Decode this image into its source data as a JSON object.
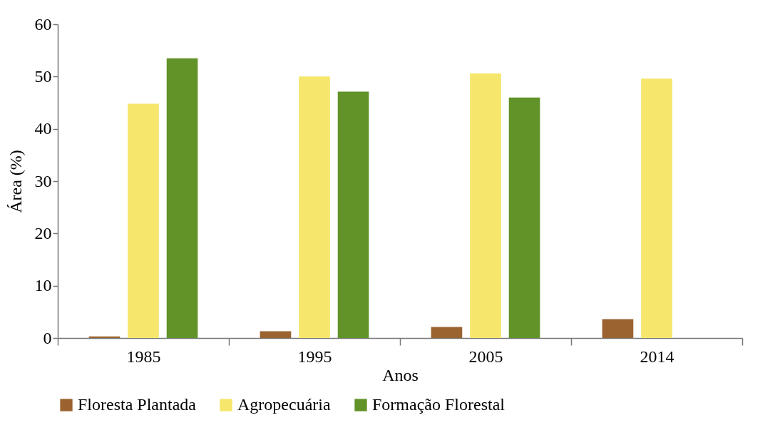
{
  "chart_data": {
    "type": "bar",
    "xlabel": "Anos",
    "ylabel": "Área (%)",
    "categories": [
      "1985",
      "1995",
      "2005",
      "2014"
    ],
    "series": [
      {
        "name": "Floresta Plantada",
        "color": "#9a6330",
        "values": [
          0.3,
          1.3,
          2.1,
          3.6
        ]
      },
      {
        "name": "Agropecuária",
        "color": "#f6e66c",
        "values": [
          44.8,
          50.0,
          50.6,
          49.6
        ]
      },
      {
        "name": "Formação Florestal",
        "color": "#619328",
        "values": [
          53.5,
          47.1,
          46.0,
          null
        ]
      }
    ],
    "ylim": [
      0,
      60
    ],
    "yticks": [
      0,
      10,
      20,
      30,
      40,
      50,
      60
    ],
    "grid": false,
    "legend": "bottom"
  }
}
